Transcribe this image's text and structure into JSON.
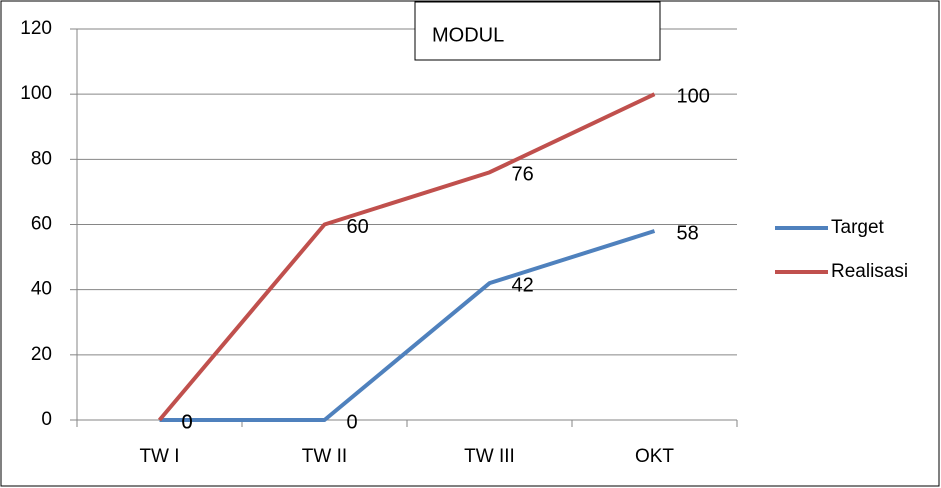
{
  "chart_data": {
    "type": "line",
    "title": "MODUL",
    "categories": [
      "TW I",
      "TW II",
      "TW III",
      "OKT"
    ],
    "series": [
      {
        "name": "Target",
        "color": "#4f81bd",
        "values": [
          0,
          0,
          42,
          58
        ]
      },
      {
        "name": "Realisasi",
        "color": "#c0504d",
        "values": [
          0,
          60,
          76,
          100
        ]
      }
    ],
    "ylim": [
      0,
      120
    ],
    "yticks": [
      0,
      20,
      40,
      60,
      80,
      100,
      120
    ],
    "grid": true,
    "legend": "right"
  }
}
